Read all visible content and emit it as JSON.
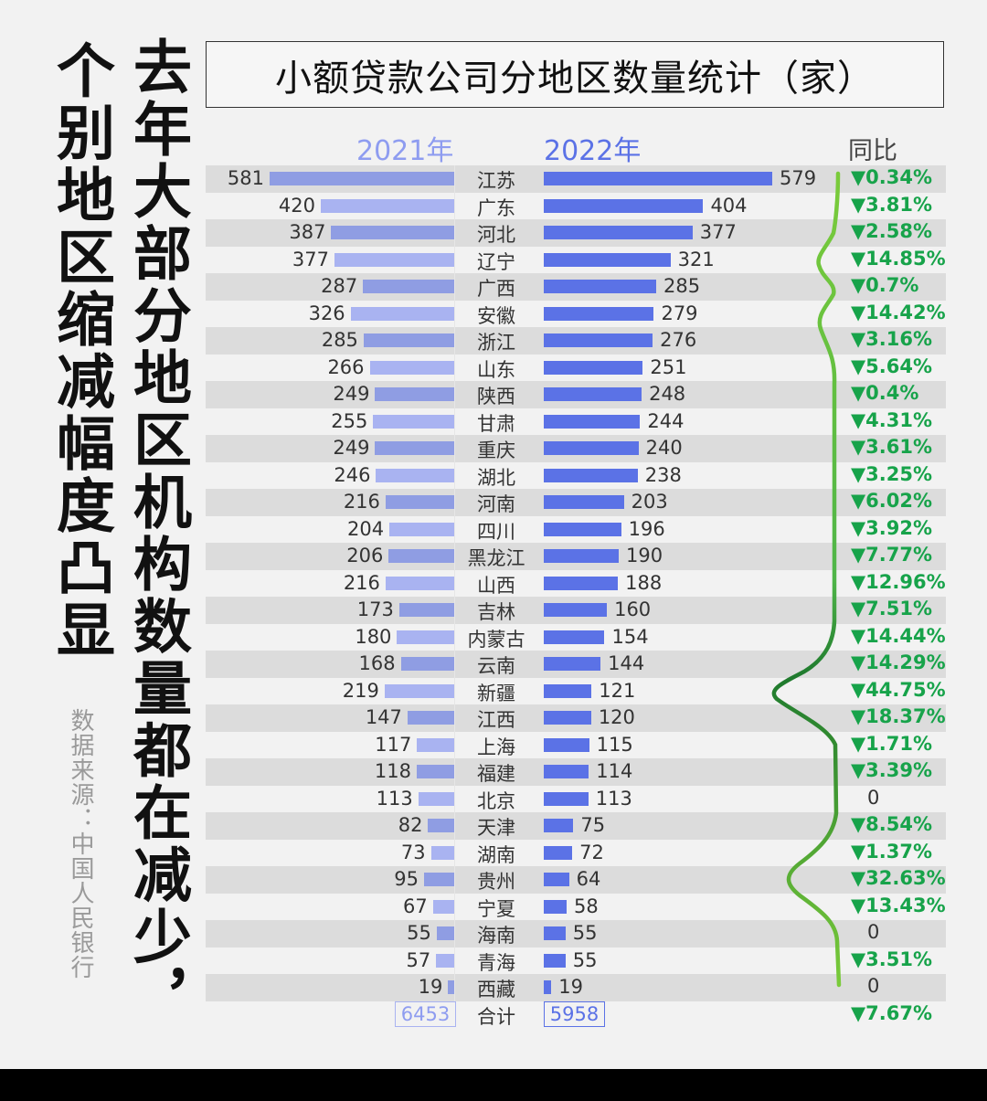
{
  "headline_right": "个别地区缩减幅度凸显",
  "headline_left": "去年大部分地区机构数量都在减少，",
  "source": "数据来源：中国人民银行",
  "chart_data": {
    "type": "bar",
    "title": "小额贷款公司分地区数量统计（家）",
    "col_2021": "2021年",
    "col_2022": "2022年",
    "col_yoy": "同比",
    "colors": {
      "bar_2021_dark": "#8f9de3",
      "bar_2021_light": "#a9b3f1",
      "bar_2022": "#5b72e6",
      "yoy_down": "#17a34a"
    },
    "categories": [
      "江苏",
      "广东",
      "河北",
      "辽宁",
      "广西",
      "安徽",
      "浙江",
      "山东",
      "陕西",
      "甘肃",
      "重庆",
      "湖北",
      "河南",
      "四川",
      "黑龙江",
      "山西",
      "吉林",
      "内蒙古",
      "云南",
      "新疆",
      "江西",
      "上海",
      "福建",
      "北京",
      "天津",
      "湖南",
      "贵州",
      "宁夏",
      "海南",
      "青海",
      "西藏"
    ],
    "series": [
      {
        "name": "2021年",
        "values": [
          581,
          420,
          387,
          377,
          287,
          326,
          285,
          266,
          249,
          255,
          249,
          246,
          216,
          204,
          206,
          216,
          173,
          180,
          168,
          219,
          147,
          117,
          118,
          113,
          82,
          73,
          95,
          67,
          55,
          57,
          19
        ]
      },
      {
        "name": "2022年",
        "values": [
          579,
          404,
          377,
          321,
          285,
          279,
          276,
          251,
          248,
          244,
          240,
          238,
          203,
          196,
          190,
          188,
          160,
          154,
          144,
          121,
          120,
          115,
          114,
          113,
          75,
          72,
          64,
          58,
          55,
          55,
          19
        ]
      }
    ],
    "yoy": [
      "▼0.34%",
      "▼3.81%",
      "▼2.58%",
      "▼14.85%",
      "▼0.7%",
      "▼14.42%",
      "▼3.16%",
      "▼5.64%",
      "▼0.4%",
      "▼4.31%",
      "▼3.61%",
      "▼3.25%",
      "▼6.02%",
      "▼3.92%",
      "▼7.77%",
      "▼12.96%",
      "▼7.51%",
      "▼14.44%",
      "▼14.29%",
      "▼44.75%",
      "▼18.37%",
      "▼1.71%",
      "▼3.39%",
      "0",
      "▼8.54%",
      "▼1.37%",
      "▼32.63%",
      "▼13.43%",
      "0",
      "▼3.51%",
      "0"
    ],
    "total": {
      "label": "合计",
      "v2021": "6453",
      "v2022": "5958",
      "yoy": "▼7.67%"
    }
  }
}
